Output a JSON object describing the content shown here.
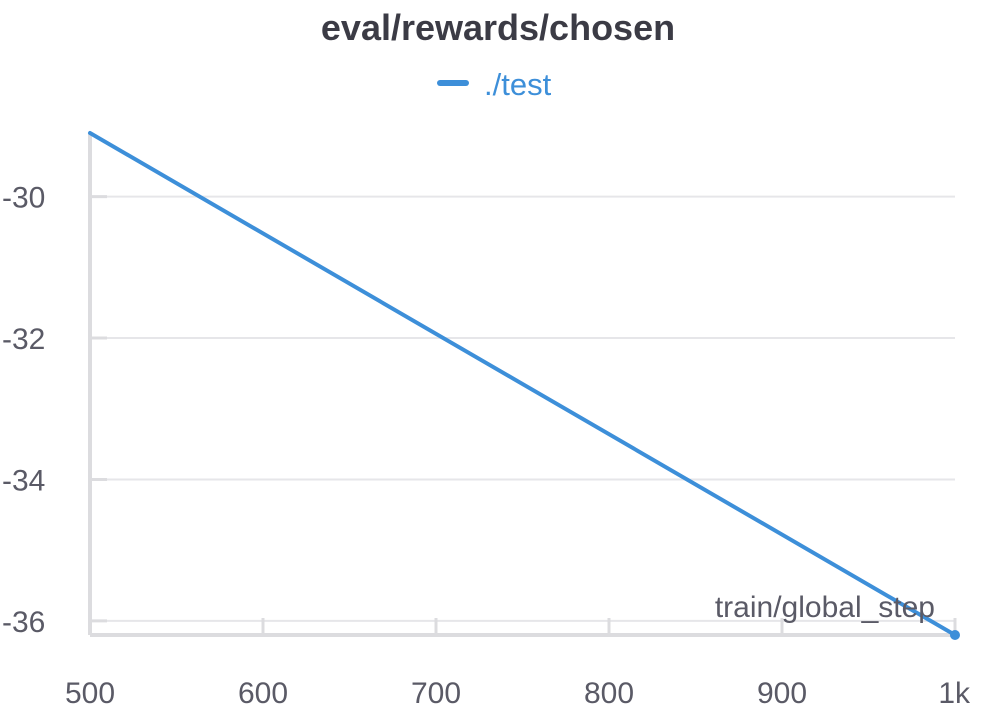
{
  "chart_data": {
    "type": "line",
    "title": "eval/rewards/chosen",
    "xlabel": "train/global_step",
    "ylabel": "",
    "xlim": [
      500,
      1000
    ],
    "ylim": [
      -36.2,
      -29.1
    ],
    "x_ticks": [
      {
        "value": 500,
        "label": "500"
      },
      {
        "value": 600,
        "label": "600"
      },
      {
        "value": 700,
        "label": "700"
      },
      {
        "value": 800,
        "label": "800"
      },
      {
        "value": 900,
        "label": "900"
      },
      {
        "value": 1000,
        "label": "1k"
      }
    ],
    "y_ticks": [
      {
        "value": -30,
        "label": "-30"
      },
      {
        "value": -32,
        "label": "-32"
      },
      {
        "value": -34,
        "label": "-34"
      },
      {
        "value": -36,
        "label": "-36"
      }
    ],
    "grid": true,
    "legend": "top-center",
    "series": [
      {
        "name": "./test",
        "color": "#3d8fd9",
        "x": [
          500,
          1000
        ],
        "y": [
          -29.1,
          -36.2
        ]
      }
    ]
  }
}
